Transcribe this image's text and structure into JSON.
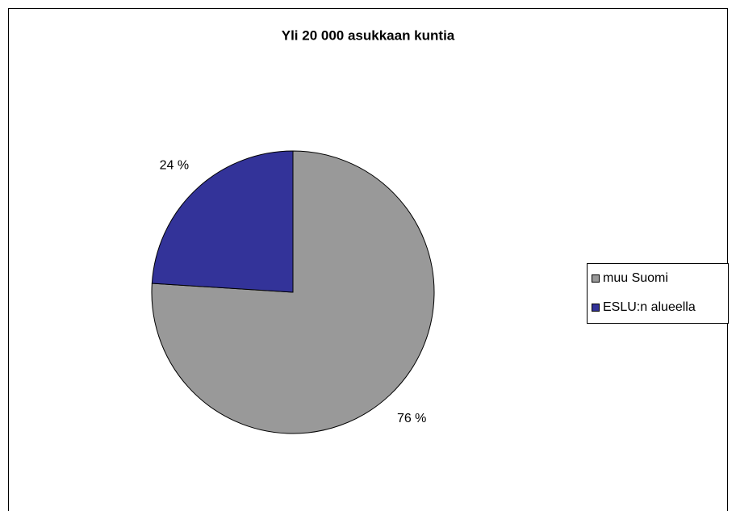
{
  "chart_data": {
    "type": "pie",
    "title": "Yli 20 000 asukkaan kuntia",
    "categories": [
      "muu Suomi",
      "ESLU:n alueella"
    ],
    "values": [
      76,
      24
    ],
    "value_labels": [
      "76 %",
      "24 %"
    ],
    "colors": [
      "#999999",
      "#333399"
    ],
    "legend": "right"
  }
}
